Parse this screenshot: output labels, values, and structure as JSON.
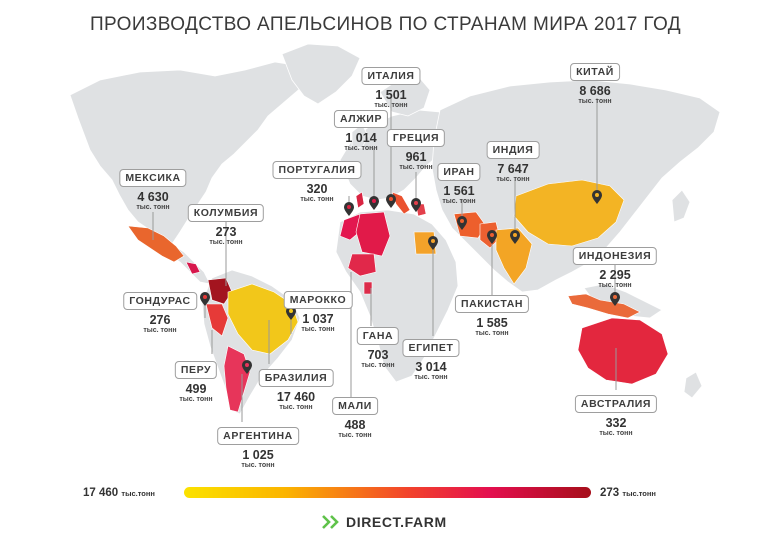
{
  "title": "ПРОИЗВОДСТВО АПЕЛЬСИНОВ ПО СТРАНАМ МИРА 2017 ГОД",
  "unit": "тыс. тонн",
  "countries": [
    {
      "id": "mexico",
      "name": "МЕКСИКА",
      "value": "4 630"
    },
    {
      "id": "colombia",
      "name": "КОЛУМБИЯ",
      "value": "273"
    },
    {
      "id": "honduras",
      "name": "ГОНДУРАС",
      "value": "276"
    },
    {
      "id": "peru",
      "name": "ПЕРУ",
      "value": "499"
    },
    {
      "id": "argentina",
      "name": "АРГЕНТИНА",
      "value": "1 025"
    },
    {
      "id": "brazil",
      "name": "БРАЗИЛИЯ",
      "value": "17 460"
    },
    {
      "id": "morocco",
      "name": "МАРОККО",
      "value": "1 037"
    },
    {
      "id": "portugal",
      "name": "ПОРТУГАЛИЯ",
      "value": "320"
    },
    {
      "id": "algeria",
      "name": "АЛЖИР",
      "value": "1 014"
    },
    {
      "id": "italy",
      "name": "ИТАЛИЯ",
      "value": "1 501"
    },
    {
      "id": "greece",
      "name": "ГРЕЦИЯ",
      "value": "961"
    },
    {
      "id": "ghana",
      "name": "ГАНА",
      "value": "703"
    },
    {
      "id": "mali",
      "name": "МАЛИ",
      "value": "488"
    },
    {
      "id": "egypt",
      "name": "ЕГИПЕТ",
      "value": "3 014"
    },
    {
      "id": "iran",
      "name": "ИРАН",
      "value": "1 561"
    },
    {
      "id": "india",
      "name": "ИНДИЯ",
      "value": "7 647"
    },
    {
      "id": "china",
      "name": "КИТАЙ",
      "value": "8 686"
    },
    {
      "id": "pakistan",
      "name": "ПАКИСТАН",
      "value": "1 585"
    },
    {
      "id": "indonesia",
      "name": "ИНДОНЕЗИЯ",
      "value": "2 295"
    },
    {
      "id": "australia",
      "name": "АВСТРАЛИЯ",
      "value": "332"
    }
  ],
  "legend": {
    "max_value": "17 460",
    "min_value": "273",
    "unit": "тыс.тонн",
    "colors": [
      "#fbe200",
      "#fbb400",
      "#f2432b",
      "#e40f4f",
      "#a60e1a"
    ]
  },
  "brand": "DIRECT.FARM",
  "colors": {
    "land": "#dfe1e3",
    "leader_line": "#9a9a9a",
    "pin": "#333333",
    "brand_green": "#5fc24a"
  }
}
